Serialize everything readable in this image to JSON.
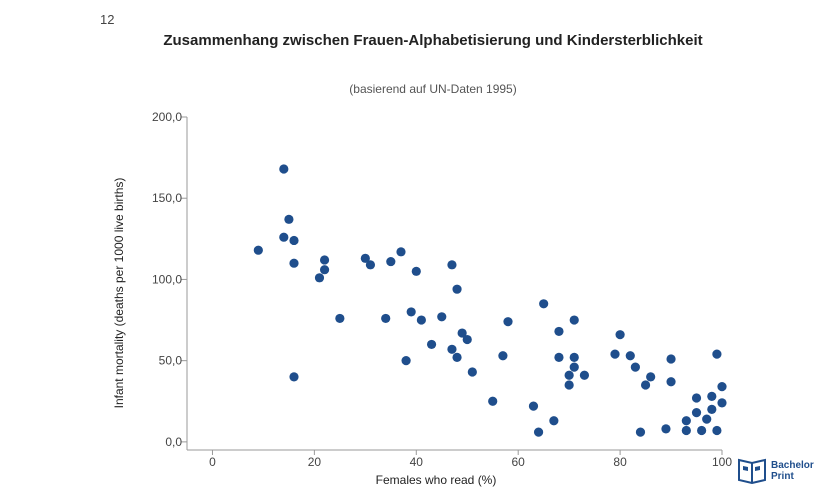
{
  "page_number": "12",
  "brand": {
    "line1": "Bachelor",
    "line2": "Print"
  },
  "chart_data": {
    "type": "scatter",
    "title": "Zusammenhang zwischen Frauen-Alphabetisierung und Kindersterblichkeit",
    "subtitle": "(basierend auf UN-Daten 1995)",
    "xlabel": "Females who read (%)",
    "ylabel": "Infant mortality (deaths per 1000 live births)",
    "xlim": [
      -5,
      100
    ],
    "ylim": [
      -5,
      200
    ],
    "xticks": [
      0,
      20,
      40,
      60,
      80,
      100
    ],
    "yticks": [
      0,
      50,
      100,
      150,
      200
    ],
    "ytick_labels": [
      "0,0",
      "50,0",
      "100,0",
      "150,0",
      "200,0"
    ],
    "grid": false,
    "point_color": "#1f4e8c",
    "points": [
      {
        "x": 9,
        "y": 118
      },
      {
        "x": 14,
        "y": 168
      },
      {
        "x": 14,
        "y": 126
      },
      {
        "x": 15,
        "y": 137
      },
      {
        "x": 16,
        "y": 124
      },
      {
        "x": 16,
        "y": 110
      },
      {
        "x": 16,
        "y": 40
      },
      {
        "x": 21,
        "y": 101
      },
      {
        "x": 22,
        "y": 112
      },
      {
        "x": 22,
        "y": 106
      },
      {
        "x": 25,
        "y": 76
      },
      {
        "x": 30,
        "y": 113
      },
      {
        "x": 31,
        "y": 109
      },
      {
        "x": 34,
        "y": 76
      },
      {
        "x": 35,
        "y": 111
      },
      {
        "x": 37,
        "y": 117
      },
      {
        "x": 38,
        "y": 50
      },
      {
        "x": 39,
        "y": 80
      },
      {
        "x": 40,
        "y": 105
      },
      {
        "x": 41,
        "y": 75
      },
      {
        "x": 43,
        "y": 60
      },
      {
        "x": 45,
        "y": 77
      },
      {
        "x": 47,
        "y": 109
      },
      {
        "x": 47,
        "y": 57
      },
      {
        "x": 48,
        "y": 94
      },
      {
        "x": 48,
        "y": 52
      },
      {
        "x": 49,
        "y": 67
      },
      {
        "x": 50,
        "y": 63
      },
      {
        "x": 51,
        "y": 43
      },
      {
        "x": 55,
        "y": 25
      },
      {
        "x": 57,
        "y": 53
      },
      {
        "x": 58,
        "y": 74
      },
      {
        "x": 63,
        "y": 22
      },
      {
        "x": 64,
        "y": 6
      },
      {
        "x": 65,
        "y": 85
      },
      {
        "x": 67,
        "y": 13
      },
      {
        "x": 68,
        "y": 68
      },
      {
        "x": 68,
        "y": 52
      },
      {
        "x": 70,
        "y": 41
      },
      {
        "x": 70,
        "y": 35
      },
      {
        "x": 71,
        "y": 75
      },
      {
        "x": 71,
        "y": 52
      },
      {
        "x": 71,
        "y": 46
      },
      {
        "x": 73,
        "y": 41
      },
      {
        "x": 79,
        "y": 54
      },
      {
        "x": 80,
        "y": 66
      },
      {
        "x": 82,
        "y": 53
      },
      {
        "x": 83,
        "y": 46
      },
      {
        "x": 84,
        "y": 6
      },
      {
        "x": 85,
        "y": 35
      },
      {
        "x": 86,
        "y": 40
      },
      {
        "x": 89,
        "y": 8
      },
      {
        "x": 90,
        "y": 51
      },
      {
        "x": 90,
        "y": 37
      },
      {
        "x": 93,
        "y": 13
      },
      {
        "x": 93,
        "y": 7
      },
      {
        "x": 95,
        "y": 27
      },
      {
        "x": 95,
        "y": 18
      },
      {
        "x": 96,
        "y": 7
      },
      {
        "x": 97,
        "y": 14
      },
      {
        "x": 98,
        "y": 28
      },
      {
        "x": 98,
        "y": 20
      },
      {
        "x": 99,
        "y": 54
      },
      {
        "x": 99,
        "y": 7
      },
      {
        "x": 100,
        "y": 34
      },
      {
        "x": 100,
        "y": 24
      }
    ]
  }
}
